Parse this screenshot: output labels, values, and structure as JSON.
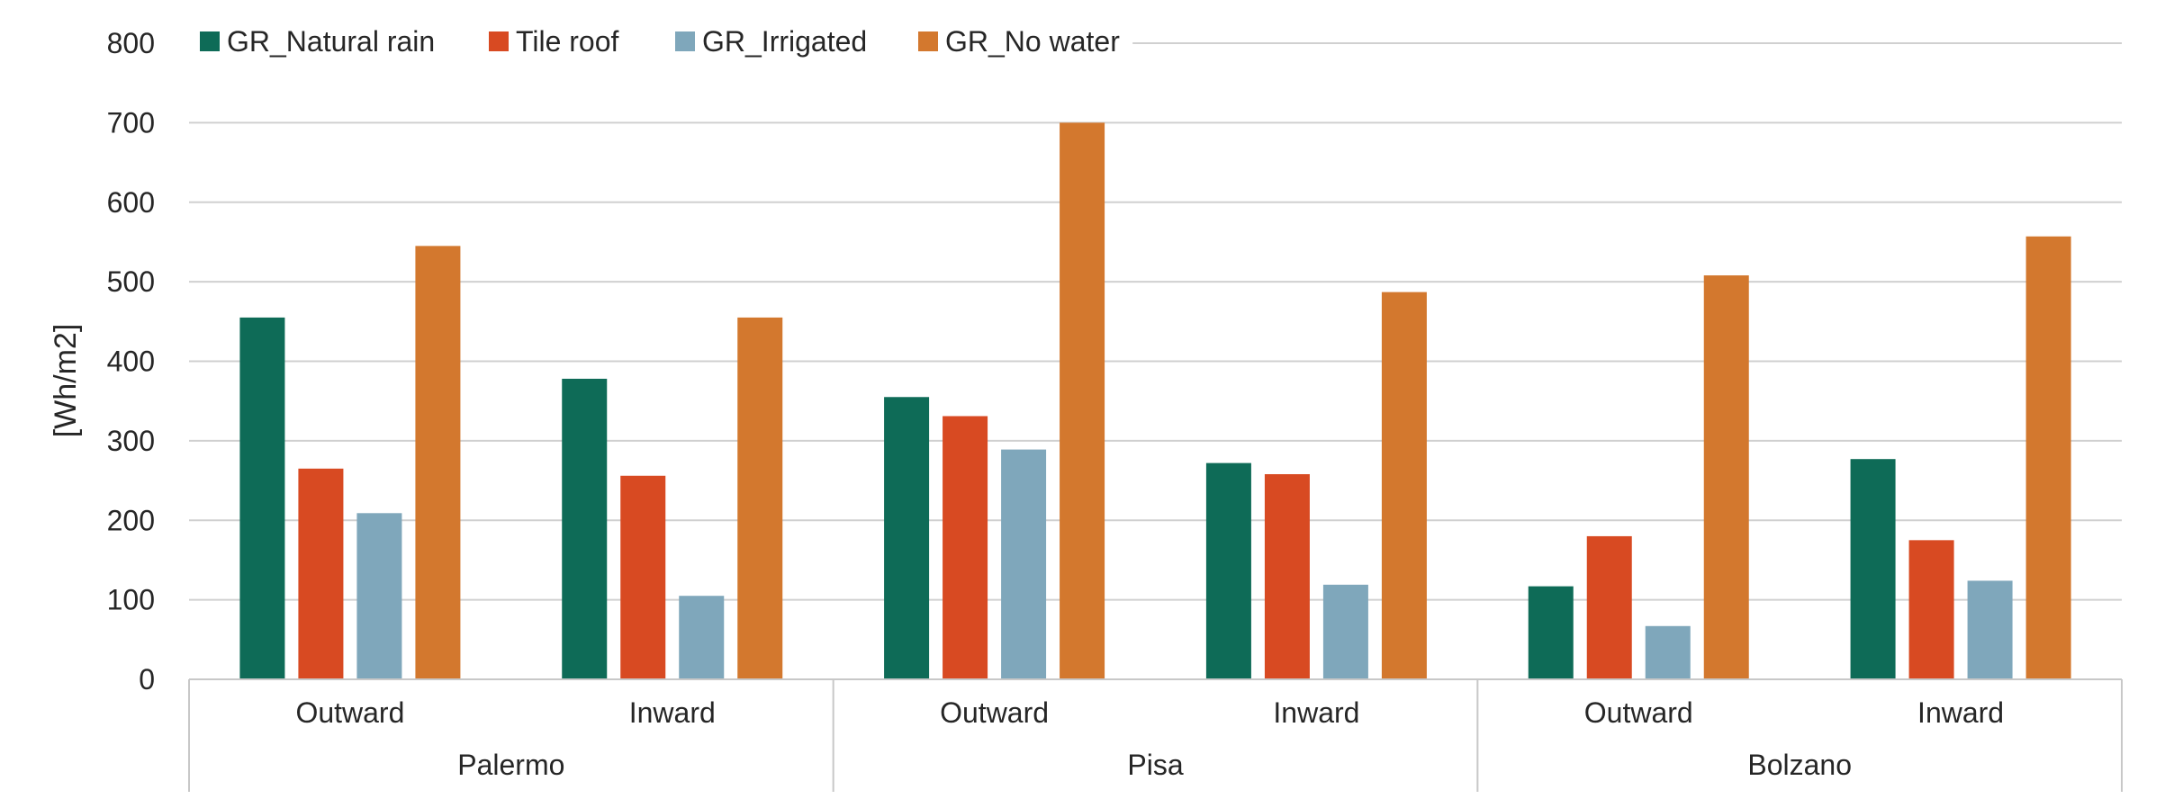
{
  "chart_data": {
    "type": "bar",
    "title": "",
    "ylabel": "[Wh/m2]",
    "xlabel": "",
    "ylim": [
      0,
      800
    ],
    "yticks": [
      0,
      100,
      200,
      300,
      400,
      500,
      600,
      700,
      800
    ],
    "grid": true,
    "legend_position": "top",
    "groups": [
      {
        "label": "Palermo",
        "categories": [
          "Outward",
          "Inward"
        ]
      },
      {
        "label": "Pisa",
        "categories": [
          "Outward",
          "Inward"
        ]
      },
      {
        "label": "Bolzano",
        "categories": [
          "Outward",
          "Inward"
        ]
      }
    ],
    "series": [
      {
        "name": "GR_Natural rain",
        "color": "#0e6b57",
        "values": [
          455,
          378,
          355,
          272,
          117,
          277
        ]
      },
      {
        "name": "Tile roof",
        "color": "#d84a22",
        "values": [
          265,
          256,
          331,
          258,
          180,
          175
        ]
      },
      {
        "name": "GR_Irrigated",
        "color": "#7fa7bb",
        "values": [
          209,
          105,
          289,
          119,
          67,
          124
        ]
      },
      {
        "name": "GR_No water",
        "color": "#d3782e",
        "values": [
          545,
          455,
          700,
          487,
          508,
          557
        ]
      }
    ]
  }
}
